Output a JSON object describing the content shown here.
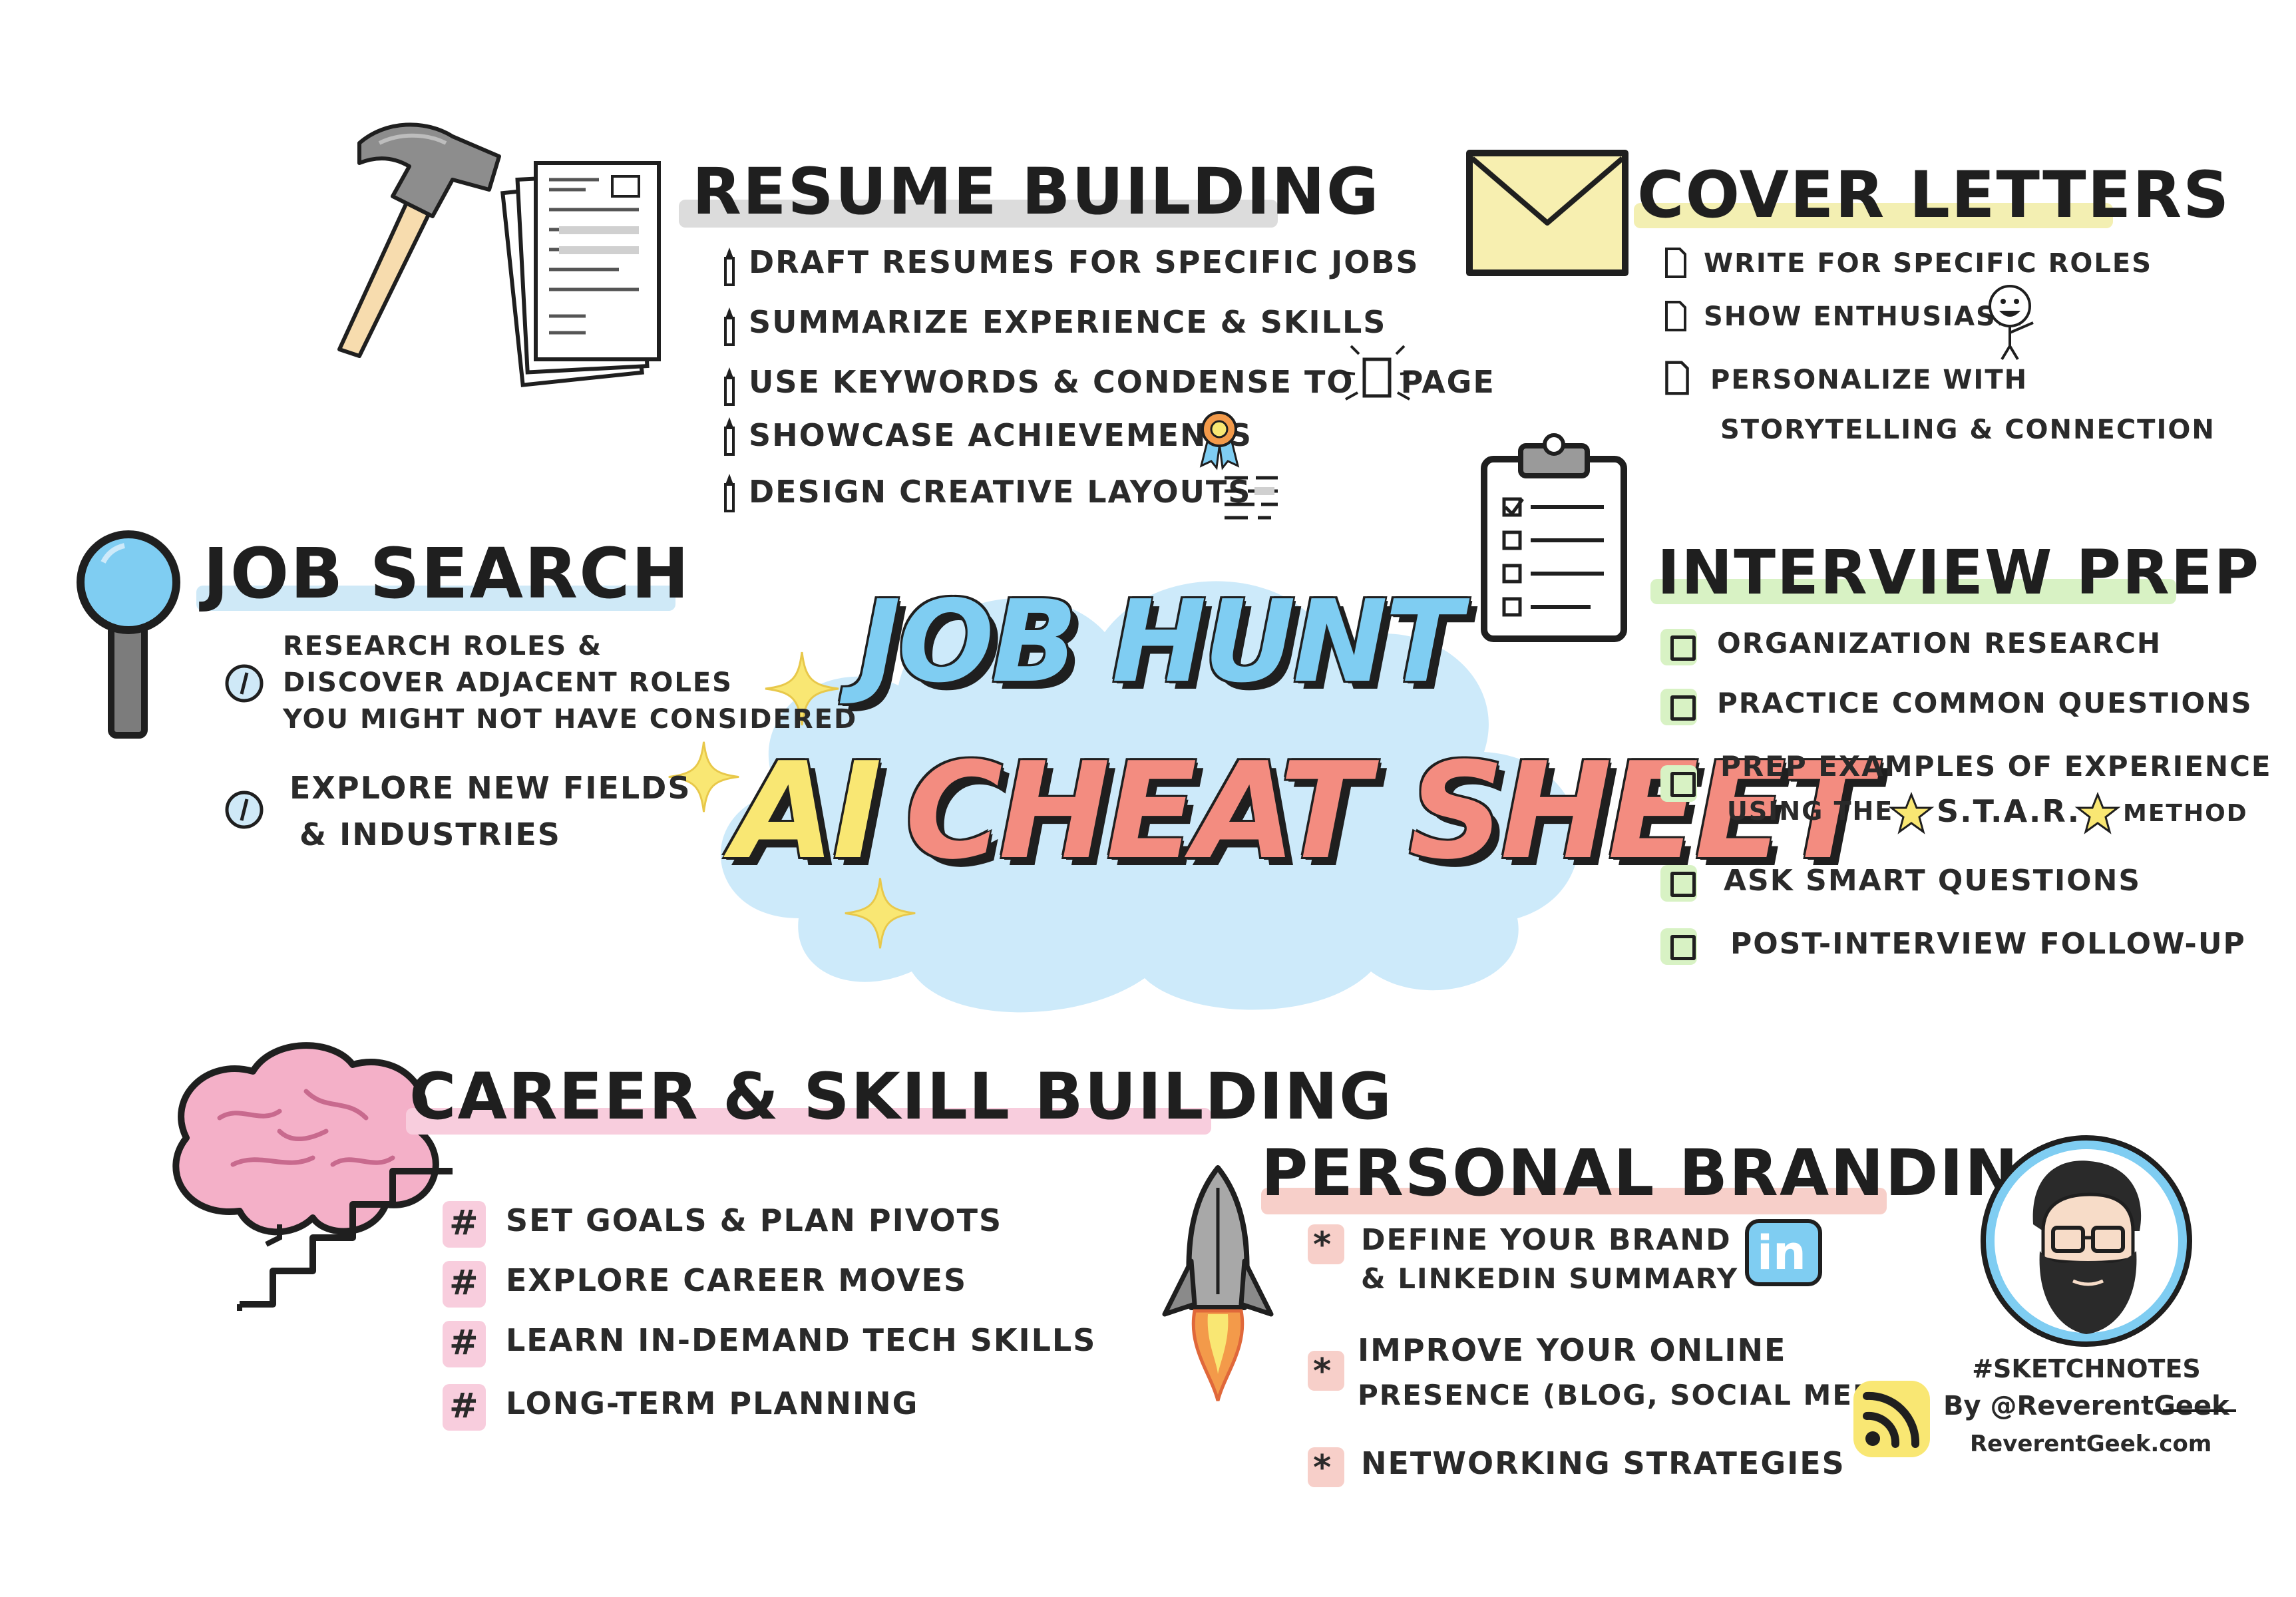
{
  "colors": {
    "resume_highlight": "#dcdcdc",
    "cover_highlight": "#f3efb2",
    "job_search_highlight": "#cfe9f7",
    "interview_highlight": "#d8f2c4",
    "career_highlight": "#f8cddd",
    "branding_highlight": "#f7cfc9",
    "cloud": "#cdeafa",
    "title_job": "#7fcdf2",
    "title_ai": "#f9e773",
    "title_cheat": "#f38c80"
  },
  "title": {
    "line1": "JOB HUNT",
    "line2_a": "AI",
    "line2_b": "CHEAT SHEET"
  },
  "resume": {
    "heading": "RESUME BUILDING",
    "items": [
      "Draft Resumes for Specific Jobs",
      "Summarize Experience & Skills",
      "Use Keywords & Condense to 1 Page",
      "Showcase Achievements",
      "Design Creative Layouts"
    ]
  },
  "cover": {
    "heading": "COVER LETTERS",
    "items": [
      "Write for Specific Roles",
      "Show Enthusiasm",
      "Personalize with",
      "Storytelling & Connection"
    ]
  },
  "job_search": {
    "heading": "JOB SEARCH",
    "item1_lines": [
      "Research Roles &",
      "Discover Adjacent Roles",
      "You Might Not Have Considered"
    ],
    "item2_lines": [
      "Explore New Fields",
      "& Industries"
    ]
  },
  "interview": {
    "heading": "INTERVIEW PREP",
    "items": [
      "Organization Research",
      "Practice Common Questions",
      "Prep Examples of Experience",
      "Ask Smart Questions",
      "Post-Interview Follow-Up"
    ],
    "star_line_a": "Using the",
    "star_line_b": "S.T.A.R.",
    "star_line_c": "Method"
  },
  "career": {
    "heading": "CAREER & SKILL BUILDING",
    "items": [
      "Set Goals & Plan Pivots",
      "Explore Career Moves",
      "Learn In-Demand Tech Skills",
      "Long-Term Planning"
    ]
  },
  "branding": {
    "heading": "PERSONAL BRANDING",
    "item1_lines": [
      "Define Your Brand",
      "& LinkedIn Summary"
    ],
    "item2_lines": [
      "Improve Your Online",
      "Presence (Blog, Social Media)"
    ],
    "item3": "Networking Strategies",
    "linkedin_badge": "in"
  },
  "footer": {
    "hashtag": "#SKETCHNOTES",
    "byline": "By @ReverentGeek",
    "site": "ReverentGeek.com"
  },
  "icons": {
    "hammer": "hammer-icon",
    "resume": "resume-document-icon",
    "envelope": "envelope-icon",
    "magnifier": "magnifying-glass-icon",
    "clipboard": "clipboard-checklist-icon",
    "brain": "brain-icon",
    "rocket": "rocket-icon",
    "linkedin": "linkedin-icon",
    "rss": "rss-icon",
    "avatar": "avatar"
  }
}
